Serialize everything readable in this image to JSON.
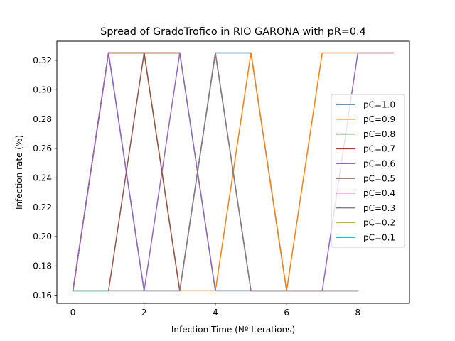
{
  "chart_data": {
    "type": "line",
    "title": "Spread of GradoTrofico in RIO GARONA with pR=0.4",
    "xlabel": "Infection Time (Nº Iterations)",
    "ylabel": "Infection rate (%)",
    "xlim": [
      -0.45,
      9.45
    ],
    "ylim": [
      0.1545,
      0.333
    ],
    "xticks": [
      0,
      2,
      4,
      6,
      8
    ],
    "xtick_labels": [
      "0",
      "2",
      "4",
      "6",
      "8"
    ],
    "yticks": [
      0.16,
      0.18,
      0.2,
      0.22,
      0.24,
      0.26,
      0.28,
      0.3,
      0.32
    ],
    "ytick_labels": [
      "0.16",
      "0.18",
      "0.20",
      "0.22",
      "0.24",
      "0.26",
      "0.28",
      "0.30",
      "0.32"
    ],
    "grid": false,
    "legend_position": "right",
    "series": [
      {
        "name": "pC=1.0",
        "color": "#1f77b4",
        "x": [
          0,
          1,
          2,
          3,
          4,
          5,
          6,
          7,
          8
        ],
        "y": [
          0.163,
          0.325,
          0.163,
          0.163,
          0.325,
          0.325,
          0.163,
          0.163,
          0.163
        ]
      },
      {
        "name": "pC=0.9",
        "color": "#ff7f0e",
        "x": [
          0,
          1,
          2,
          3,
          4,
          5,
          6,
          7,
          8,
          9
        ],
        "y": [
          0.163,
          0.325,
          0.325,
          0.163,
          0.163,
          0.325,
          0.163,
          0.325,
          0.325,
          0.325
        ]
      },
      {
        "name": "pC=0.8",
        "color": "#2ca02c",
        "x": [
          0,
          1,
          2,
          3,
          4,
          5,
          6,
          7,
          8
        ],
        "y": [
          0.163,
          0.325,
          0.325,
          0.325,
          0.163,
          0.163,
          0.163,
          0.163,
          0.163
        ]
      },
      {
        "name": "pC=0.7",
        "color": "#d62728",
        "x": [
          0,
          1,
          2,
          3
        ],
        "y": [
          0.163,
          0.325,
          0.325,
          0.325
        ]
      },
      {
        "name": "pC=0.6",
        "color": "#9467bd",
        "x": [
          0,
          1,
          2,
          3,
          4,
          5,
          6,
          7,
          8,
          9
        ],
        "y": [
          0.163,
          0.325,
          0.163,
          0.325,
          0.163,
          0.163,
          0.163,
          0.163,
          0.325,
          0.325
        ]
      },
      {
        "name": "pC=0.5",
        "color": "#8c564b",
        "x": [
          0,
          1,
          2,
          3,
          4,
          5,
          6,
          7,
          8
        ],
        "y": [
          0.163,
          0.163,
          0.325,
          0.163,
          0.325,
          0.163,
          0.163,
          0.163,
          0.163
        ]
      },
      {
        "name": "pC=0.4",
        "color": "#e377c2",
        "x": [
          0,
          1,
          2,
          3,
          4,
          5,
          6,
          7,
          8
        ],
        "y": [
          0.163,
          0.163,
          0.163,
          0.163,
          0.325,
          0.163,
          0.163,
          0.163,
          0.163
        ]
      },
      {
        "name": "pC=0.3",
        "color": "#7f7f7f",
        "x": [
          0,
          1,
          2,
          3,
          4,
          5,
          6,
          7,
          8
        ],
        "y": [
          0.163,
          0.163,
          0.163,
          0.163,
          0.325,
          0.163,
          0.163,
          0.163,
          0.163
        ]
      },
      {
        "name": "pC=0.2",
        "color": "#bcbd22",
        "x": [
          0,
          1
        ],
        "y": [
          0.163,
          0.163
        ]
      },
      {
        "name": "pC=0.1",
        "color": "#17becf",
        "x": [
          0,
          1
        ],
        "y": [
          0.163,
          0.163
        ]
      }
    ]
  }
}
